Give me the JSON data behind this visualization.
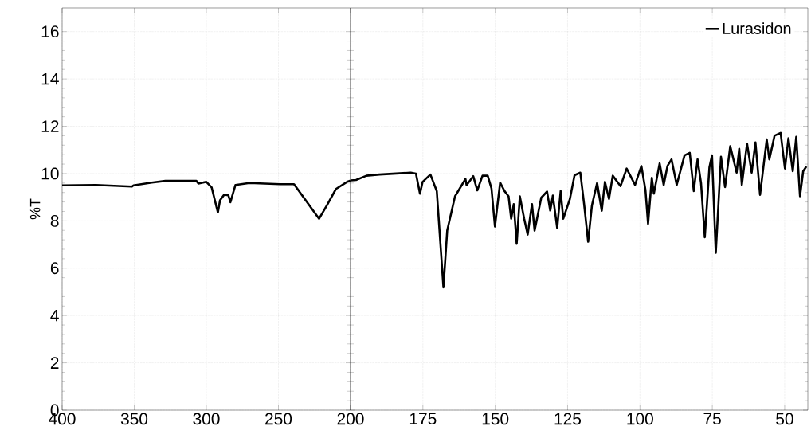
{
  "chart_data": [
    {
      "type": "line",
      "ylabel": "%T",
      "xlim": [
        400,
        200
      ],
      "ylim": [
        0,
        17
      ],
      "xticks": [
        400,
        350,
        300,
        250,
        200
      ],
      "yticks": [
        0,
        2,
        4,
        6,
        8,
        10,
        12,
        14,
        16
      ],
      "grid": true,
      "marker": "none",
      "line_style": "solid",
      "series": [
        {
          "color": "#000000",
          "x": [
            400,
            376.6,
            351.6,
            350.5,
            337.9,
            328.4,
            306.9,
            305.5,
            300,
            296.3,
            292.0,
            290.5,
            287.6,
            284.7,
            283.3,
            279.8,
            270.1,
            248.9,
            239.2,
            221.8,
            216.0,
            210.1,
            202.4,
            200
          ],
          "values": [
            9.5,
            9.52,
            9.45,
            9.5,
            9.62,
            9.69,
            9.69,
            9.58,
            9.65,
            9.41,
            8.36,
            8.87,
            9.11,
            9.08,
            8.79,
            9.52,
            9.6,
            9.55,
            9.55,
            8.09,
            8.7,
            9.35,
            9.65,
            9.7
          ]
        }
      ]
    },
    {
      "type": "line",
      "xlim": [
        200,
        42
      ],
      "ylim": [
        0,
        17
      ],
      "xticks": [
        {
          "value": 200,
          "label": null
        },
        175,
        150,
        125,
        100,
        75,
        50
      ],
      "yticks": [
        0,
        2,
        4,
        6,
        8,
        10,
        12,
        14,
        16
      ],
      "grid": true,
      "tick_labels": "x",
      "legend": "top right",
      "marker": "none",
      "line_style": "solid",
      "series": [
        {
          "name": "Lurasidon",
          "color": "#000000",
          "x": [
            200,
            198.1,
            194.5,
            190,
            179.2,
            177.4,
            176.0,
            175.1,
            172.4,
            170.2,
            167.9,
            166.6,
            163.9,
            160.3,
            159.9,
            157.6,
            156.2,
            154.4,
            152.6,
            151.3,
            150.1,
            149.2,
            148.3,
            146.8,
            145.4,
            144.5,
            143.6,
            142.6,
            141.5,
            140.0,
            138.8,
            137.3,
            136.4,
            134.1,
            132.1,
            131.0,
            130.1,
            128.6,
            127.4,
            126.5,
            124.2,
            122.6,
            120.6,
            119.3,
            117.9,
            116.6,
            114.8,
            113.2,
            112.1,
            110.7,
            109.4,
            106.7,
            104.6,
            101.7,
            99.5,
            98.1,
            97.2,
            95.9,
            95.2,
            93.2,
            91.8,
            90.5,
            89.1,
            87.3,
            84.6,
            82.8,
            81.4,
            80.1,
            78.9,
            77.6,
            76.0,
            75.1,
            73.8,
            72.0,
            70.6,
            68.8,
            66.6,
            65.7,
            64.8,
            63.0,
            61.4,
            60.1,
            58.5,
            56.2,
            55.3,
            53.5,
            51.4,
            49.9,
            48.7,
            47.2,
            46.0,
            44.7,
            43.6,
            42.5
          ],
          "values": [
            9.71,
            9.73,
            9.91,
            9.96,
            10.04,
            10.0,
            9.15,
            9.65,
            9.96,
            9.26,
            5.19,
            7.59,
            9.04,
            9.77,
            9.51,
            9.89,
            9.29,
            9.91,
            9.91,
            9.37,
            7.76,
            8.71,
            9.62,
            9.26,
            9.04,
            8.09,
            8.71,
            7.03,
            9.04,
            8.09,
            7.42,
            8.71,
            7.59,
            8.98,
            9.24,
            8.43,
            9.07,
            7.7,
            9.26,
            8.09,
            8.93,
            9.93,
            10.04,
            8.71,
            7.12,
            8.65,
            9.6,
            8.43,
            9.65,
            8.93,
            9.91,
            9.47,
            10.21,
            9.52,
            10.32,
            9.3,
            7.87,
            9.82,
            9.15,
            10.43,
            9.52,
            10.32,
            10.6,
            9.52,
            10.77,
            10.88,
            9.26,
            10.6,
            9.6,
            7.31,
            10.27,
            10.77,
            6.65,
            10.71,
            9.43,
            11.16,
            10.04,
            11.05,
            9.52,
            11.27,
            10.04,
            11.32,
            9.1,
            11.44,
            10.6,
            11.6,
            11.72,
            10.21,
            11.49,
            10.1,
            11.55,
            9.04,
            10.1,
            10.3
          ]
        }
      ]
    }
  ]
}
